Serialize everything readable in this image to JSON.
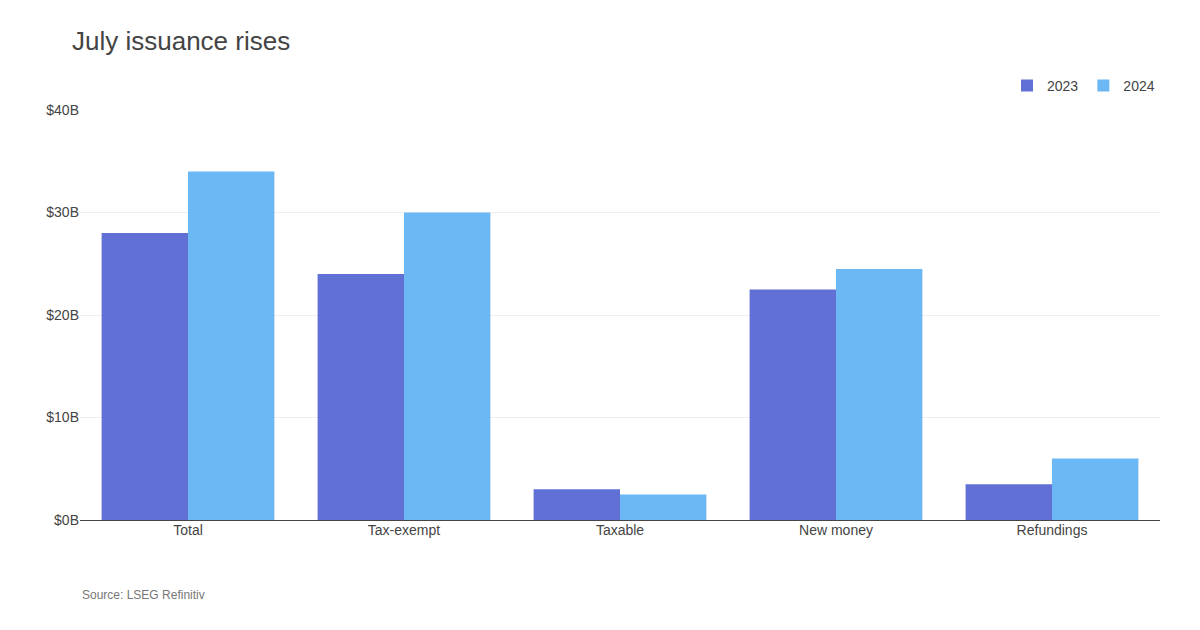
{
  "chart_data": {
    "type": "bar",
    "title": "July issuance rises",
    "categories": [
      "Total",
      "Tax-exempt",
      "Taxable",
      "New money",
      "Refundings"
    ],
    "series": [
      {
        "name": "2023",
        "color": "#6070D4",
        "values": [
          28.0,
          24.0,
          3.0,
          22.5,
          3.5
        ]
      },
      {
        "name": "2024",
        "color": "#6BB8F5",
        "values": [
          34.0,
          30.0,
          2.5,
          24.5,
          6.0
        ]
      }
    ],
    "ylim": [
      0,
      40
    ],
    "yticks": [
      {
        "value": 0,
        "label": "$0B"
      },
      {
        "value": 10,
        "label": "$10B"
      },
      {
        "value": 20,
        "label": "$20B"
      },
      {
        "value": 30,
        "label": "$30B"
      },
      {
        "value": 40,
        "label": "$40B"
      }
    ],
    "grid": true,
    "legend": "upper right",
    "annotations": [
      "Source: LSEG Refinitiv"
    ]
  }
}
